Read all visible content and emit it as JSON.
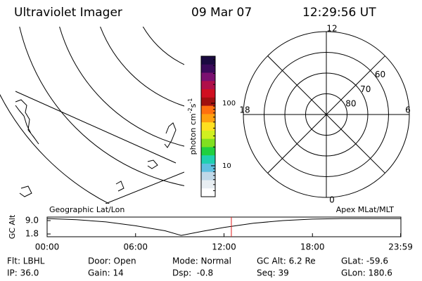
{
  "header": {
    "title": "Ultraviolet Imager",
    "date": "09 Mar 07",
    "time": "12:29:56 UT"
  },
  "colorbar": {
    "label": [
      "photon cm",
      "-2",
      "s",
      "-1"
    ],
    "log": true,
    "clim": [
      3.2,
      566
    ],
    "ticks": [
      10,
      100
    ],
    "colors": [
      "#1a0a40",
      "#3a0a5a",
      "#7a1070",
      "#b0104a",
      "#d01020",
      "#a01010",
      "#ff7010",
      "#ffa010",
      "#ffe020",
      "#d0f020",
      "#80e020",
      "#20d040",
      "#20d0b0",
      "#60c0e0",
      "#c0d8e8",
      "#e8eef2",
      "#ffffff"
    ]
  },
  "polar": {
    "mlt_labels": [
      {
        "value": 12,
        "label": "12"
      },
      {
        "value": 6,
        "label": "6"
      },
      {
        "value": 0,
        "label": "0"
      },
      {
        "value": 18,
        "label": "18"
      }
    ],
    "rlim": [
      90,
      50
    ],
    "rticks": [
      60,
      70,
      80
    ]
  },
  "orbit": {
    "ylabel": "GC Alt",
    "left_title": "Geographic Lat/Lon",
    "right_title": "Apex MLat/MLT",
    "xlim": [
      0,
      24
    ],
    "ylim": [
      0.3,
      10.9
    ],
    "yticks": [
      {
        "value": 9.0,
        "label": "9.0"
      },
      {
        "value": 1.8,
        "label": "1.8"
      }
    ],
    "xticks": [
      {
        "value": 0,
        "label": "00:00"
      },
      {
        "value": 6,
        "label": "06:00"
      },
      {
        "value": 12,
        "label": "12:00"
      },
      {
        "value": 18,
        "label": "18:00"
      },
      {
        "value": 23.98,
        "label": "23:59"
      }
    ],
    "x": [
      0,
      2,
      4,
      6,
      8,
      9.1,
      10.5,
      12,
      14,
      16,
      18,
      20,
      22,
      24
    ],
    "values": [
      10.1,
      9.5,
      8.3,
      6.2,
      3.5,
      1.0,
      3.2,
      5.3,
      7.6,
      9.0,
      9.8,
      10.1,
      10.1,
      10.1
    ],
    "current_time": 12.499,
    "current_color": "#e02020"
  },
  "footer": {
    "rows": [
      [
        "Flt: LBHL",
        "Door: Open",
        "Mode: Normal",
        "GC Alt: 6.2 Re",
        "GLat: -59.6"
      ],
      [
        "IP: 36.0",
        "Gain: 14",
        "Dsp:  -0.8",
        "Seq: 39",
        "GLon: 180.6"
      ]
    ]
  }
}
